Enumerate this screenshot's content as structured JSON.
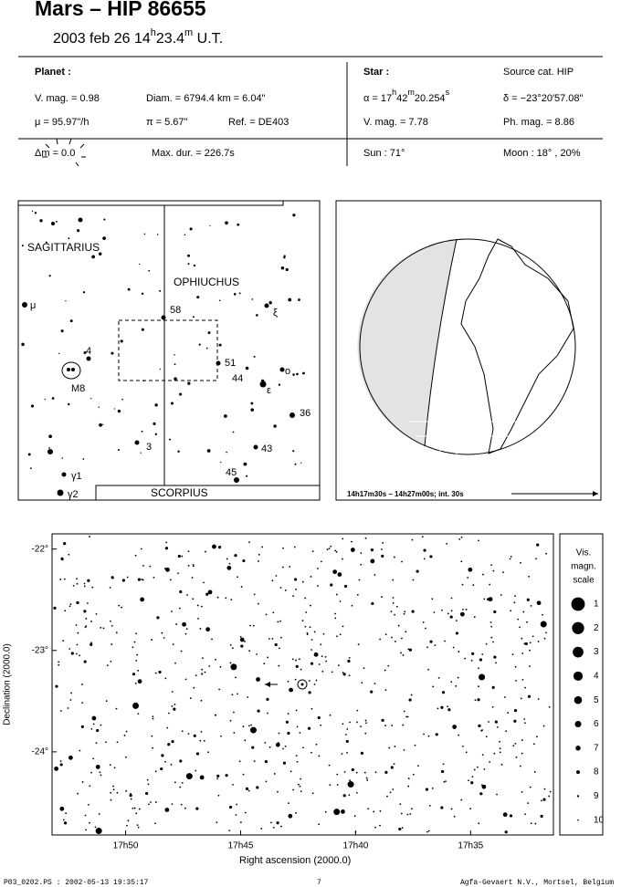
{
  "header": {
    "title": "Mars  –  HIP 86655",
    "subtitle": [
      "2003 feb 26  14",
      "h",
      "23.4",
      "m",
      " U.T."
    ]
  },
  "planet": {
    "heading": "Planet :",
    "vmag": "V. mag. =  0.98",
    "diam": "Diam. = 6794.4 km = 6.04\"",
    "mu": "μ =  95.97\"/h",
    "pi": "π =  5.67\"",
    "ref": "Ref. = DE403"
  },
  "star": {
    "heading": "Star :",
    "source": "Source cat.  HIP",
    "ra": [
      "α = 17",
      "h",
      "42",
      "m",
      "20.254",
      "s"
    ],
    "dec": "δ = −23°20′57.08\"",
    "vmag": "V. mag. =  7.78",
    "phmag": "Ph. mag. =  8.86"
  },
  "event": {
    "dm": "Δm = 0.0",
    "maxdur": "Max. dur. = 226.7s",
    "sun": "Sun :  71°",
    "moon": "Moon :  18° , 20%"
  },
  "finder_map": {
    "constellations": [
      "SAGITTARIUS",
      "OPHIUCHUS",
      "SCORPIUS"
    ],
    "labels": [
      "μ",
      "ξ",
      "ο",
      "ε",
      "58",
      "4",
      "M8",
      "51",
      "44",
      "36",
      "3",
      "43",
      "45",
      "γ1",
      "γ2"
    ]
  },
  "globe": {
    "caption": "14h17m30s – 14h27m00s; int. 30s"
  },
  "star_chart": {
    "xlabel": "Right ascension (2000.0)",
    "ylabel": "Declination (2000.0)",
    "xlim": [
      1073.2,
      1051.4
    ],
    "ylim": [
      -24.82,
      -21.85
    ],
    "xticks": [
      {
        "value": 1070,
        "label": "17h50"
      },
      {
        "value": 1065,
        "label": "17h45"
      },
      {
        "value": 1060,
        "label": "17h40"
      },
      {
        "value": 1055,
        "label": "17h35"
      }
    ],
    "yticks": [
      {
        "value": -22,
        "label": "-22°"
      },
      {
        "value": -23,
        "label": "-23°"
      },
      {
        "value": -24,
        "label": "-24°"
      }
    ],
    "scale": {
      "title": [
        "Vis.",
        "magn.",
        "scale"
      ],
      "magnitudes": [
        1,
        2,
        3,
        4,
        5,
        6,
        7,
        8,
        9,
        10
      ]
    }
  },
  "footer": {
    "file": "P03_0202.PS : 2002-05-13 19:35:17",
    "page": "7",
    "company": "Agfa-Gevaert N.V., Mortsel, Belgium"
  }
}
